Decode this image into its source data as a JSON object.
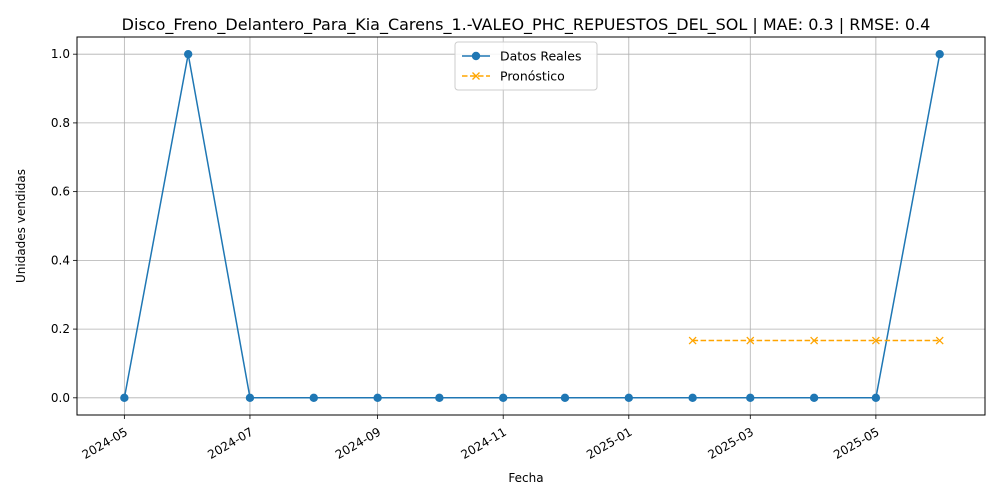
{
  "chart_data": {
    "type": "line",
    "title": "Disco_Freno_Delantero_Para_Kia_Carens_1.-VALEO_PHC_REPUESTOS_DEL_SOL | MAE: 0.3 | RMSE: 0.4",
    "xlabel": "Fecha",
    "ylabel": "Unidades vendidas",
    "xlim": [
      "2024-04-08",
      "2025-06-23"
    ],
    "ylim": [
      -0.05,
      1.05
    ],
    "x_ticks": [
      "2024-05",
      "2024-07",
      "2024-09",
      "2024-11",
      "2025-01",
      "2025-03",
      "2025-05"
    ],
    "y_ticks": [
      "0.0",
      "0.2",
      "0.4",
      "0.6",
      "0.8",
      "1.0"
    ],
    "grid": true,
    "legend_position": "upper-center",
    "series": [
      {
        "name": "Datos Reales",
        "color": "#1f77b4",
        "marker": "circle",
        "line_style": "solid",
        "x": [
          "2024-05-01",
          "2024-06-01",
          "2024-07-01",
          "2024-08-01",
          "2024-09-01",
          "2024-10-01",
          "2024-11-01",
          "2024-12-01",
          "2025-01-01",
          "2025-02-01",
          "2025-03-01",
          "2025-04-01",
          "2025-05-01",
          "2025-06-01"
        ],
        "values": [
          0,
          1,
          0,
          0,
          0,
          0,
          0,
          0,
          0,
          0,
          0,
          0,
          0,
          1
        ]
      },
      {
        "name": "Pronóstico",
        "color": "#ffa500",
        "marker": "x",
        "line_style": "dashed",
        "x": [
          "2025-02-01",
          "2025-03-01",
          "2025-04-01",
          "2025-05-01",
          "2025-06-01"
        ],
        "values": [
          0.1667,
          0.1667,
          0.1667,
          0.1667,
          0.1667
        ]
      }
    ]
  }
}
